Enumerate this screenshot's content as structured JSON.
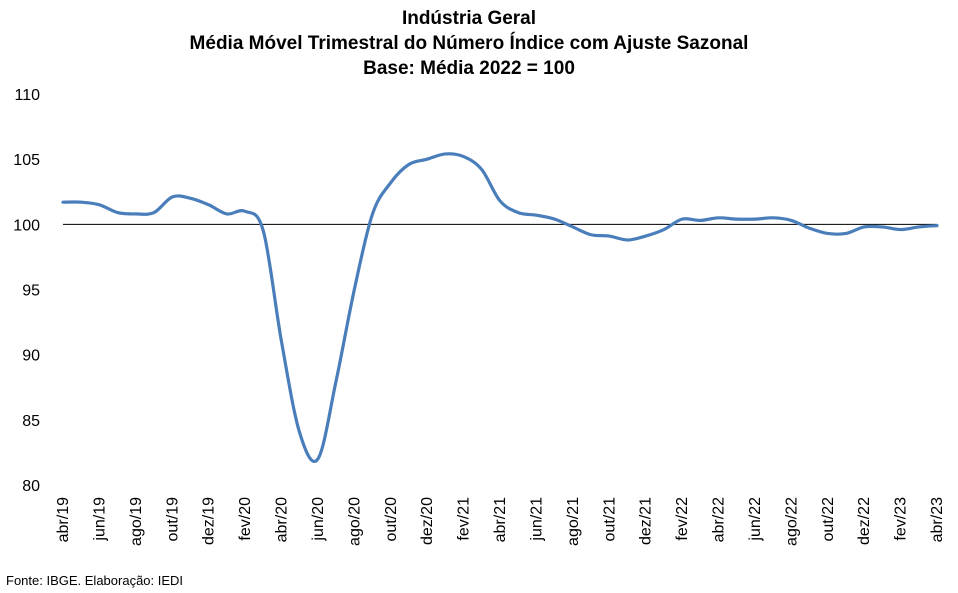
{
  "chart_data": {
    "type": "line",
    "title": "Indústria Geral",
    "subtitle": [
      "Média Móvel Trimestral do Número Índice com Ajuste Sazonal",
      "Base: Média 2022 = 100"
    ],
    "xlabel": "",
    "ylabel": "",
    "ylim": [
      80,
      110
    ],
    "yticks": [
      80,
      85,
      90,
      95,
      100,
      105,
      110
    ],
    "reference_line": 100,
    "grid": false,
    "legend": "none",
    "color": "#4a7ebb",
    "x": [
      "abr/19",
      "mai/19",
      "jun/19",
      "jul/19",
      "ago/19",
      "set/19",
      "out/19",
      "nov/19",
      "dez/19",
      "jan/20",
      "fev/20",
      "mar/20",
      "abr/20",
      "mai/20",
      "jun/20",
      "jul/20",
      "ago/20",
      "set/20",
      "out/20",
      "nov/20",
      "dez/20",
      "jan/21",
      "fev/21",
      "mar/21",
      "abr/21",
      "mai/21",
      "jun/21",
      "jul/21",
      "ago/21",
      "set/21",
      "out/21",
      "nov/21",
      "dez/21",
      "jan/22",
      "fev/22",
      "mar/22",
      "abr/22",
      "mai/22",
      "jun/22",
      "jul/22",
      "ago/22",
      "set/22",
      "out/22",
      "nov/22",
      "dez/22",
      "jan/23",
      "fev/23",
      "mar/23",
      "abr/23"
    ],
    "xtick_labels": [
      "abr/19",
      "jun/19",
      "ago/19",
      "out/19",
      "dez/19",
      "fev/20",
      "abr/20",
      "jun/20",
      "ago/20",
      "out/20",
      "dez/20",
      "fev/21",
      "abr/21",
      "jun/21",
      "ago/21",
      "out/21",
      "dez/21",
      "fev/22",
      "abr/22",
      "jun/22",
      "ago/22",
      "out/22",
      "dez/22",
      "fev/23",
      "abr/23"
    ],
    "series": [
      {
        "values": [
          101.7,
          101.7,
          101.5,
          100.9,
          100.8,
          100.9,
          102.1,
          102.0,
          101.5,
          100.8,
          101.0,
          99.5,
          91.0,
          84.0,
          82.0,
          88.0,
          95.0,
          100.8,
          103.2,
          104.6,
          105.0,
          105.4,
          105.2,
          104.2,
          101.8,
          100.9,
          100.7,
          100.4,
          99.8,
          99.2,
          99.1,
          98.8,
          99.1,
          99.6,
          100.4,
          100.3,
          100.5,
          100.4,
          100.4,
          100.5,
          100.3,
          99.7,
          99.3,
          99.3,
          99.8,
          99.8,
          99.6,
          99.8,
          99.9
        ]
      }
    ]
  },
  "footer": {
    "source": "Fonte: IBGE. Elaboração: IEDI"
  }
}
